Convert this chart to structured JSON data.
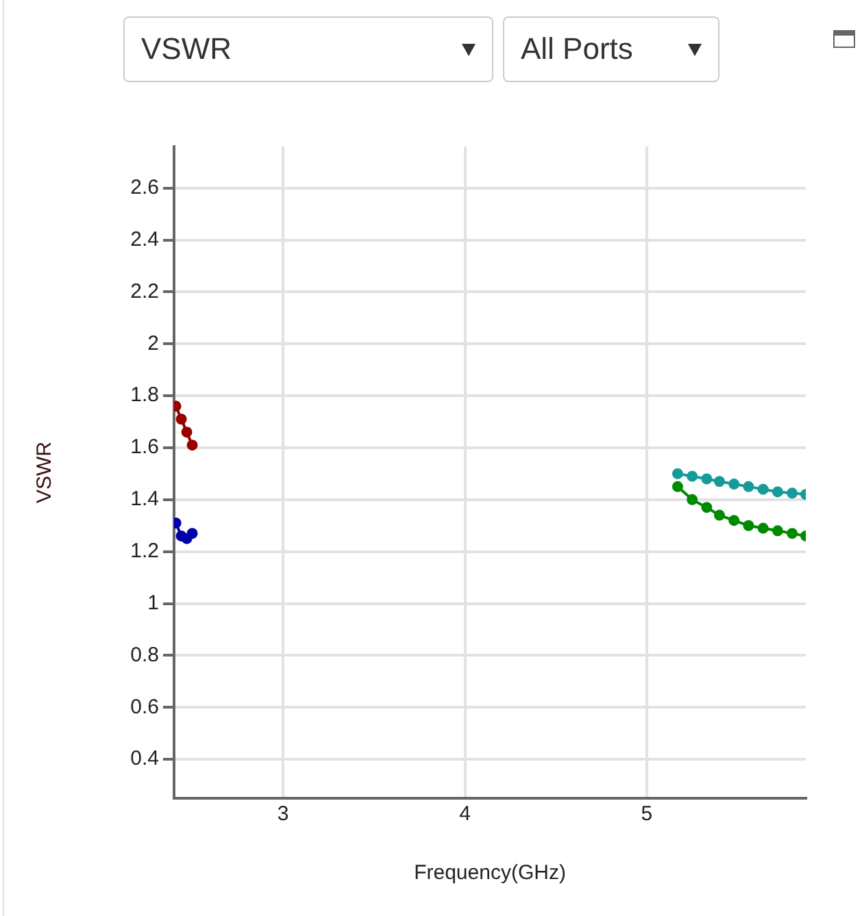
{
  "chart_data": {
    "type": "line",
    "xlabel": "Frequency(GHz)",
    "ylabel": "VSWR",
    "annotations": [
      "VSWR",
      "All Ports"
    ],
    "xlim": [
      2.4,
      5.875
    ],
    "xticks": [
      3,
      4,
      5
    ],
    "ylim": [
      0.25,
      2.76
    ],
    "yticks": [
      0.4,
      0.6,
      0.8,
      1.0,
      1.2,
      1.4,
      1.6,
      1.8,
      2.0,
      2.2,
      2.4,
      2.6
    ],
    "grid": true,
    "legend": false,
    "marker": "circle",
    "line_style": "solid",
    "series": [
      {
        "color": "#990000",
        "x": [
          2.41,
          2.44,
          2.47,
          2.5
        ],
        "values": [
          1.76,
          1.71,
          1.66,
          1.61
        ]
      },
      {
        "color": "#0000aa",
        "x": [
          2.41,
          2.44,
          2.47,
          2.5
        ],
        "values": [
          1.31,
          1.26,
          1.25,
          1.27
        ]
      },
      {
        "color": "#169a9a",
        "x": [
          5.17,
          5.25,
          5.33,
          5.4,
          5.48,
          5.56,
          5.64,
          5.72,
          5.8,
          5.875
        ],
        "values": [
          1.5,
          1.49,
          1.48,
          1.47,
          1.46,
          1.45,
          1.44,
          1.43,
          1.425,
          1.42
        ]
      },
      {
        "color": "#008a00",
        "x": [
          5.17,
          5.25,
          5.33,
          5.4,
          5.48,
          5.56,
          5.64,
          5.72,
          5.8,
          5.875
        ],
        "values": [
          1.45,
          1.4,
          1.37,
          1.34,
          1.32,
          1.3,
          1.29,
          1.28,
          1.27,
          1.26
        ]
      }
    ]
  }
}
